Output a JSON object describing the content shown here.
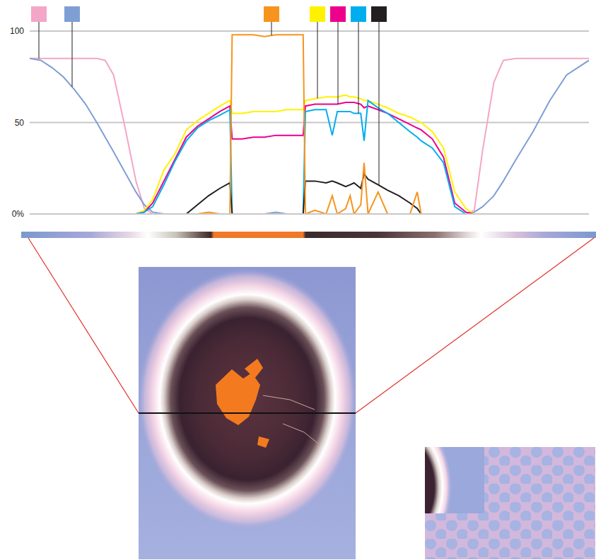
{
  "chart_data": {
    "type": "line",
    "xlim": [
      0,
      100
    ],
    "ylim": [
      0,
      100
    ],
    "yticks": [
      {
        "value": 0,
        "label": "0%"
      },
      50,
      100
    ],
    "grid": true,
    "tick_labels": "y",
    "legend": "top",
    "x": [
      0,
      2,
      4,
      6,
      8,
      10,
      12,
      13.5,
      15,
      17,
      19,
      20.5,
      22,
      24,
      26,
      28,
      30,
      32,
      34,
      35.8,
      36.2,
      38,
      40,
      42,
      44,
      46,
      48,
      48.9,
      49.3,
      51,
      53,
      54.1,
      55,
      56.5,
      57.3,
      58,
      59.2,
      59.8,
      60.5,
      62.3,
      64,
      66,
      68,
      69.3,
      70,
      72,
      74,
      76,
      78,
      79.5,
      81,
      83,
      84.7,
      87,
      90,
      93,
      96,
      100
    ],
    "series": [
      {
        "color": "#f4a6c8",
        "values": [
          85,
          85,
          85,
          85,
          85,
          85,
          85,
          84,
          76,
          48,
          18,
          3,
          0,
          0,
          0,
          0,
          0,
          0,
          0,
          0,
          0,
          0,
          0,
          0,
          0,
          0,
          0,
          0,
          0,
          0,
          0,
          0,
          0,
          0,
          0,
          0,
          0,
          0,
          0,
          0,
          0,
          0,
          0,
          0,
          0,
          0,
          0,
          0,
          0,
          2,
          35,
          72,
          84,
          85,
          85,
          85,
          85,
          85
        ]
      },
      {
        "color": "#7f9fd4",
        "values": [
          85,
          84,
          80,
          75,
          68,
          60,
          50,
          42,
          34,
          23,
          12,
          5,
          1,
          0,
          0,
          0,
          0,
          0,
          0,
          0,
          0,
          0,
          0,
          0,
          1,
          0,
          0,
          0,
          0,
          0,
          0,
          0,
          0,
          0,
          0,
          0,
          0,
          0,
          0,
          0,
          0,
          0,
          0,
          0,
          0,
          0,
          0,
          0,
          0,
          1,
          4,
          10,
          18,
          30,
          45,
          62,
          76,
          84
        ]
      },
      {
        "color": "#fff200",
        "values": [
          0,
          0,
          0,
          0,
          0,
          0,
          0,
          0,
          0,
          0,
          0,
          2,
          8,
          24,
          33,
          46,
          51,
          55,
          59,
          62,
          55,
          55,
          56,
          56,
          56,
          57,
          57,
          57,
          62,
          63,
          64,
          64,
          64,
          65,
          64,
          64,
          63,
          62,
          62,
          60,
          58,
          55,
          53,
          51,
          50,
          45,
          36,
          12,
          3,
          0,
          0,
          0,
          0,
          0,
          0,
          0,
          0,
          0
        ]
      },
      {
        "color": "#ec008c",
        "values": [
          0,
          0,
          0,
          0,
          0,
          0,
          0,
          0,
          0,
          0,
          0,
          1,
          6,
          18,
          30,
          42,
          48,
          52,
          56,
          59,
          41,
          41,
          42,
          42,
          43,
          43,
          43,
          43,
          59,
          60,
          60,
          60,
          60,
          61,
          61,
          61,
          60,
          58,
          59,
          57,
          55,
          52,
          49,
          47,
          46,
          41,
          31,
          6,
          1,
          0,
          0,
          0,
          0,
          0,
          0,
          0,
          0,
          0
        ]
      },
      {
        "color": "#00aeef",
        "values": [
          0,
          0,
          0,
          0,
          0,
          0,
          0,
          0,
          0,
          0,
          0,
          1,
          4,
          16,
          29,
          40,
          47,
          51,
          54,
          57,
          0,
          0,
          0,
          0,
          0,
          0,
          0,
          0,
          56,
          57,
          57,
          43,
          56,
          56,
          56,
          55,
          55,
          40,
          62,
          58,
          55,
          50,
          45,
          42,
          40,
          36,
          28,
          4,
          0,
          0,
          0,
          0,
          0,
          0,
          0,
          0,
          0,
          0
        ]
      },
      {
        "color": "#231f20",
        "values": [
          0,
          0,
          0,
          0,
          0,
          0,
          0,
          0,
          0,
          0,
          0,
          0,
          0,
          0,
          0,
          0,
          5,
          10,
          14,
          17,
          0,
          0,
          0,
          0,
          0,
          0,
          0,
          0,
          18,
          18,
          17,
          18,
          17,
          15,
          16,
          17,
          14,
          22,
          19,
          16,
          13,
          10,
          6,
          3,
          0,
          0,
          0,
          0,
          0,
          0,
          0,
          0,
          0,
          0,
          0,
          0,
          0,
          0
        ]
      },
      {
        "color": "#f7941d",
        "values": [
          0,
          0,
          0,
          0,
          0,
          0,
          0,
          0,
          0,
          0,
          0,
          0,
          0,
          0,
          0,
          0,
          0,
          1,
          0,
          0,
          98,
          98,
          98,
          97,
          98,
          98,
          98,
          98,
          0,
          2,
          0,
          10,
          0,
          3,
          10,
          0,
          5,
          28,
          0,
          12,
          0,
          0,
          0,
          12,
          0,
          0,
          0,
          0,
          0,
          0,
          0,
          0,
          0,
          0,
          0,
          0,
          0,
          0
        ]
      }
    ]
  }
}
